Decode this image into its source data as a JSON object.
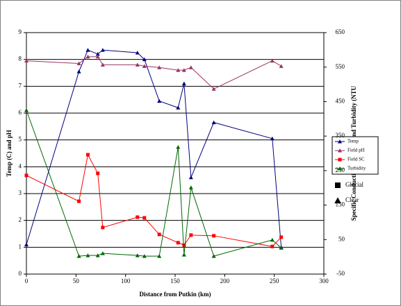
{
  "chart_data": {
    "type": "line",
    "x_label": "Distance from Putkin (km)",
    "y_label": "Temp (C) and pH",
    "y2_label": "Specific Conductivity (µS/cm) and Turbidity (NTU",
    "x": [
      0,
      53,
      62,
      72,
      77,
      112,
      119,
      134,
      153,
      159,
      166,
      189,
      248,
      257
    ],
    "series": [
      {
        "name": "Temp",
        "color": "#000080",
        "marker": "triangle",
        "values": [
          1.1,
          7.55,
          8.35,
          8.2,
          8.35,
          8.25,
          8.0,
          6.45,
          6.2,
          7.1,
          3.6,
          5.65,
          5.05,
          1.0
        ]
      },
      {
        "name": "Field pH",
        "color": "#993366",
        "marker": "triangle",
        "values": [
          7.95,
          7.85,
          8.1,
          8.1,
          7.8,
          7.8,
          7.75,
          7.7,
          7.6,
          7.6,
          7.7,
          6.9,
          7.95,
          7.75
        ]
      },
      {
        "name": "Field SC",
        "color": "#ff0000",
        "marker": "square",
        "axis": "y2",
        "values": [
          236,
          161,
          296,
          242,
          85,
          115,
          113,
          65,
          41,
          34,
          63,
          61,
          30,
          57
        ]
      },
      {
        "name": "Turbidity",
        "color": "#006600",
        "marker": "triangle",
        "axis": "y2",
        "values": [
          425,
          2,
          4,
          4,
          10,
          4,
          2,
          2,
          318,
          6,
          201,
          2,
          49,
          26
        ]
      }
    ],
    "marker_legend": [
      {
        "name": "Glacial",
        "shape": "square"
      },
      {
        "name": "Clear",
        "shape": "triangle"
      }
    ],
    "xlim": [
      0,
      300
    ],
    "xticks": [
      0,
      50,
      100,
      150,
      200,
      250,
      300
    ],
    "ylim": [
      0,
      9
    ],
    "yticks": [
      0,
      1,
      2,
      3,
      4,
      5,
      6,
      7,
      8,
      9
    ],
    "y2lim": [
      -50,
      650
    ],
    "y2ticks": [
      -50,
      50,
      150,
      250,
      350,
      450,
      550,
      650
    ],
    "grid": true
  }
}
